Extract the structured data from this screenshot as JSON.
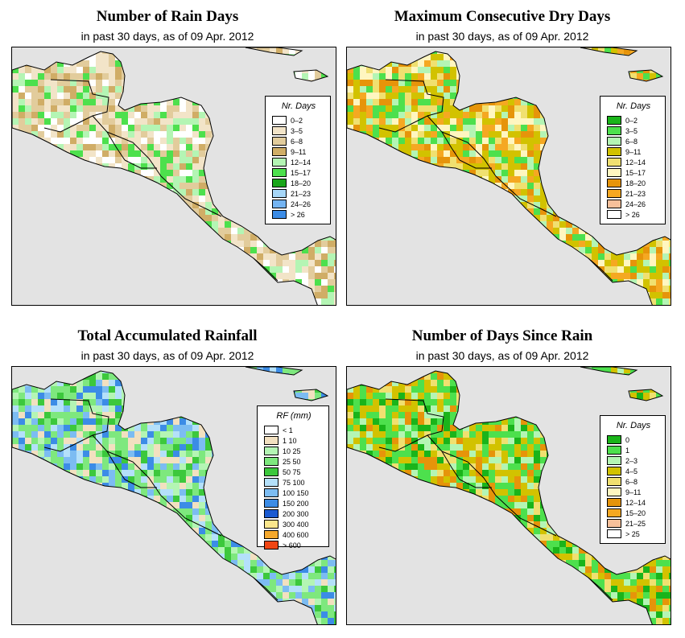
{
  "panels": [
    {
      "id": "rain-days",
      "title": "Number of Rain Days",
      "subtitle": "in past 30 days, as of  09 Apr. 2012",
      "legend_title": "Nr. Days",
      "legend": [
        {
          "label": "0–2",
          "color": "#ffffff"
        },
        {
          "label": "3–5",
          "color": "#f2e4c8"
        },
        {
          "label": "6–8",
          "color": "#e2cc9c"
        },
        {
          "label": "9–11",
          "color": "#d0ad66"
        },
        {
          "label": "12–14",
          "color": "#b4f5b4"
        },
        {
          "label": "15–17",
          "color": "#4de04d"
        },
        {
          "label": "18–20",
          "color": "#1aa61a"
        },
        {
          "label": "21–23",
          "color": "#a6d6f7"
        },
        {
          "label": "24–26",
          "color": "#74b4f2"
        },
        {
          "label": "> 26",
          "color": "#3c8ce6"
        }
      ],
      "palette": [
        "#ffffff",
        "#f2e4c8",
        "#f2e4c8",
        "#e2cc9c",
        "#e2cc9c",
        "#d0ad66",
        "#b4f5b4",
        "#4de04d"
      ]
    },
    {
      "id": "max-dry-days",
      "title": "Maximum Consecutive Dry Days",
      "subtitle": "in past 30 days, as of  09 Apr. 2012",
      "legend_title": "Nr. Days",
      "legend": [
        {
          "label": "0–2",
          "color": "#1ab41a"
        },
        {
          "label": "3–5",
          "color": "#4de04d"
        },
        {
          "label": "6–8",
          "color": "#b4f5b4"
        },
        {
          "label": "9–11",
          "color": "#d2c200"
        },
        {
          "label": "12–14",
          "color": "#f0e070"
        },
        {
          "label": "15–17",
          "color": "#fff6c0"
        },
        {
          "label": "18–20",
          "color": "#e6940a"
        },
        {
          "label": "21–23",
          "color": "#f5a822"
        },
        {
          "label": "24–26",
          "color": "#f7c09a"
        },
        {
          "label": "> 26",
          "color": "#ffffff"
        }
      ],
      "palette": [
        "#d2c200",
        "#d2c200",
        "#e6940a",
        "#f5a822",
        "#b4f5b4",
        "#4de04d",
        "#f0e070",
        "#fff6c0"
      ]
    },
    {
      "id": "total-rainfall",
      "title": "Total Accumulated Rainfall",
      "subtitle": "in past 30 days, as of  09 Apr. 2012",
      "legend_title": "RF (mm)",
      "legend": [
        {
          "label": "< 1",
          "color": "#ffffff"
        },
        {
          "label": "1   10",
          "color": "#f2e0c0"
        },
        {
          "label": "10   25",
          "color": "#b4f5b4"
        },
        {
          "label": "25   50",
          "color": "#7ee87e"
        },
        {
          "label": "50   75",
          "color": "#3cc83c"
        },
        {
          "label": "75   100",
          "color": "#b4e0fa"
        },
        {
          "label": "100   150",
          "color": "#7cbcf2"
        },
        {
          "label": "150   200",
          "color": "#3c8ce6"
        },
        {
          "label": "200   300",
          "color": "#1a5ad2"
        },
        {
          "label": "300   400",
          "color": "#fae68c"
        },
        {
          "label": "400   600",
          "color": "#f5a82c"
        },
        {
          "label": "> 600",
          "color": "#f04614"
        }
      ],
      "palette": [
        "#7ee87e",
        "#3cc83c",
        "#b4f5b4",
        "#7cbcf2",
        "#b4e0fa",
        "#f2e0c0",
        "#7ee87e",
        "#3c8ce6"
      ]
    },
    {
      "id": "days-since-rain",
      "title": "Number of Days Since Rain",
      "subtitle": "in past 30 days, as of  09 Apr. 2012",
      "legend_title": "Nr. Days",
      "legend": [
        {
          "label": "0",
          "color": "#1ab41a"
        },
        {
          "label": "1",
          "color": "#4de04d"
        },
        {
          "label": "2–3",
          "color": "#b4f5b4"
        },
        {
          "label": "4–5",
          "color": "#d2c200"
        },
        {
          "label": "6–8",
          "color": "#f0e070"
        },
        {
          "label": "9–11",
          "color": "#fff6c0"
        },
        {
          "label": "12–14",
          "color": "#e6940a"
        },
        {
          "label": "15–20",
          "color": "#f5a822"
        },
        {
          "label": "21–25",
          "color": "#f7c09a"
        },
        {
          "label": "> 25",
          "color": "#ffffff"
        }
      ],
      "palette": [
        "#4de04d",
        "#1ab41a",
        "#b4f5b4",
        "#d2c200",
        "#d2c200",
        "#4de04d",
        "#f0e070",
        "#e6940a"
      ]
    }
  ]
}
